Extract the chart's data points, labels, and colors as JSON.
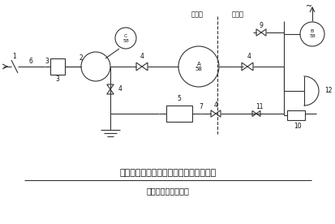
{
  "title": "压差测量管、增压管、取样管布置示意图",
  "subtitle": "（一台过滤吸收器）",
  "bg_color": "#ffffff",
  "line_color": "#333333",
  "text_color": "#111111",
  "label_染毒区": "染毒区",
  "label_清洁区": "清洁区",
  "figsize": [
    4.14,
    2.76
  ],
  "dpi": 100
}
